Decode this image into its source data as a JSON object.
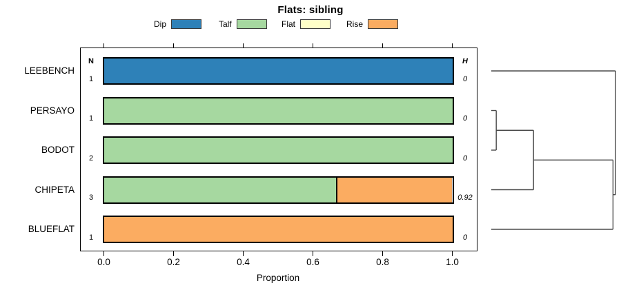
{
  "chart_data": {
    "type": "bar",
    "orientation": "horizontal",
    "stacked": true,
    "title": "Flats: sibling",
    "xlabel": "Proportion",
    "xticks": [
      "0.0",
      "0.2",
      "0.4",
      "0.6",
      "0.8",
      "1.0"
    ],
    "xlim": [
      0,
      1
    ],
    "grid": false,
    "legend_position": "top",
    "categories": [
      "LEEBENCH",
      "PERSAYO",
      "BODOT",
      "CHIPETA",
      "BLUEFLAT"
    ],
    "series": [
      {
        "name": "Dip",
        "values": [
          1,
          0,
          0,
          0,
          0
        ]
      },
      {
        "name": "Talf",
        "values": [
          0,
          1,
          1,
          0.667,
          0
        ]
      },
      {
        "name": "Flat",
        "values": [
          0,
          0,
          0,
          0,
          0
        ]
      },
      {
        "name": "Rise",
        "values": [
          0,
          0,
          0,
          0.333,
          1
        ]
      }
    ],
    "n_header": "N",
    "n_values": [
      "1",
      "1",
      "2",
      "3",
      "1"
    ],
    "h_header": "H",
    "h_values": [
      "0",
      "0",
      "0",
      "0.92",
      "0"
    ],
    "dendrogram": {
      "leaf_order": [
        "LEEBENCH",
        "PERSAYO",
        "BODOT",
        "CHIPETA",
        "BLUEFLAT"
      ],
      "merges": [
        {
          "a": "PERSAYO",
          "b": "BODOT",
          "height": 0.04
        },
        {
          "a": "m0",
          "b": "CHIPETA",
          "height": 0.34
        },
        {
          "a": "m1",
          "b": "BLUEFLAT",
          "height": 0.98
        },
        {
          "a": "LEEBENCH",
          "b": "m2",
          "height": 1.0
        }
      ]
    }
  },
  "legend": [
    {
      "label": "Dip",
      "color": "#2E81B8"
    },
    {
      "label": "Talf",
      "color": "#A6D8A0"
    },
    {
      "label": "Flat",
      "color": "#FFFFC8"
    },
    {
      "label": "Rise",
      "color": "#FBAC61"
    }
  ],
  "colors": {
    "bar_border": "#000000",
    "dendrogram_line": "#4A4A4A",
    "text": "#000000"
  }
}
